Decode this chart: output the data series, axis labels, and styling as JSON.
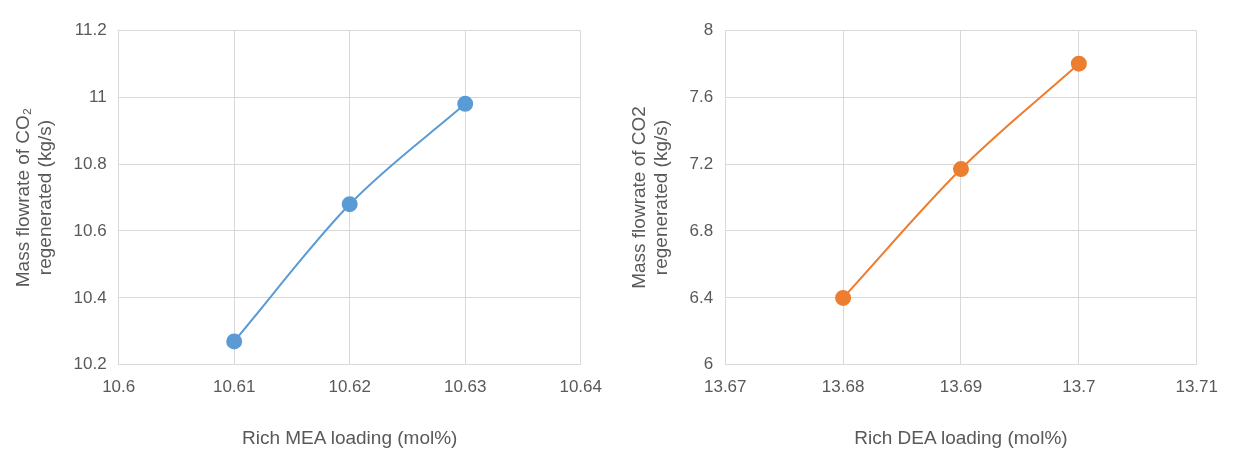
{
  "chart_data": [
    {
      "type": "line",
      "xlabel": "Rich MEA loading (mol%)",
      "ylabel": "Mass flowrate of CO₂\nregenerated (kg/s)",
      "x": [
        10.61,
        10.62,
        10.63
      ],
      "series": [
        {
          "color": "#5b9bd5",
          "values": [
            10.27,
            10.68,
            10.98
          ]
        }
      ],
      "xlim": [
        10.6,
        10.64
      ],
      "xticks": [
        10.6,
        10.61,
        10.62,
        10.63,
        10.64
      ],
      "ylim": [
        10.2,
        11.2
      ],
      "yticks": [
        10.2,
        10.4,
        10.6,
        10.8,
        11,
        11.2
      ],
      "grid": true,
      "legend": false,
      "marker": "circle"
    },
    {
      "type": "line",
      "xlabel": "Rich DEA loading (mol%)",
      "ylabel": "Mass flowrate of CO2\nregenerated (kg/s)",
      "x": [
        13.68,
        13.69,
        13.7
      ],
      "series": [
        {
          "color": "#ed7d31",
          "values": [
            6.4,
            7.17,
            7.8
          ]
        }
      ],
      "xlim": [
        13.67,
        13.71
      ],
      "xticks": [
        13.67,
        13.68,
        13.69,
        13.7,
        13.71
      ],
      "ylim": [
        6,
        8
      ],
      "yticks": [
        6,
        6.4,
        6.8,
        7.2,
        7.6,
        8
      ],
      "grid": true,
      "legend": false,
      "marker": "circle"
    }
  ]
}
